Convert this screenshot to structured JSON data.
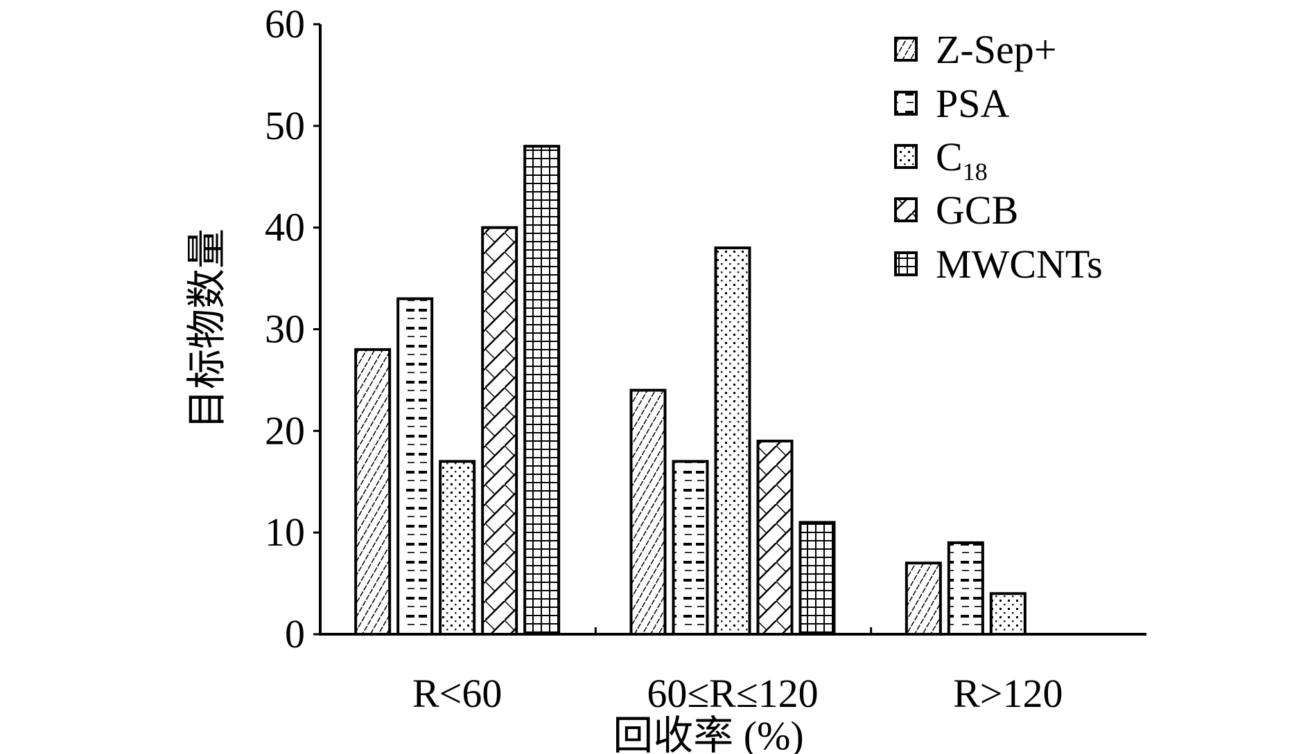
{
  "chart_data": {
    "type": "bar",
    "title": "",
    "xlabel": "回收率 (%)",
    "ylabel": "目标物数量",
    "categories": [
      "R<60",
      "60≤R≤120",
      "R>120"
    ],
    "ylim": [
      0,
      60
    ],
    "yticks": [
      0,
      10,
      20,
      30,
      40,
      50,
      60
    ],
    "grid": false,
    "legend_position": "top-right",
    "series": [
      {
        "name": "Z-Sep+",
        "name_main": "Z-Sep+",
        "name_sub": "",
        "pattern": "diagonal",
        "values": [
          28,
          24,
          7
        ]
      },
      {
        "name": "PSA",
        "name_main": "PSA",
        "name_sub": "",
        "pattern": "dashes",
        "values": [
          33,
          17,
          9
        ]
      },
      {
        "name": "C18",
        "name_main": "C",
        "name_sub": "18",
        "pattern": "dots",
        "values": [
          17,
          38,
          4
        ]
      },
      {
        "name": "GCB",
        "name_main": "GCB",
        "name_sub": "",
        "pattern": "cross-diagonal",
        "values": [
          40,
          19,
          0
        ]
      },
      {
        "name": "MWCNTs",
        "name_main": "MWCNTs",
        "name_sub": "",
        "pattern": "grid",
        "values": [
          48,
          11,
          0
        ]
      }
    ]
  }
}
